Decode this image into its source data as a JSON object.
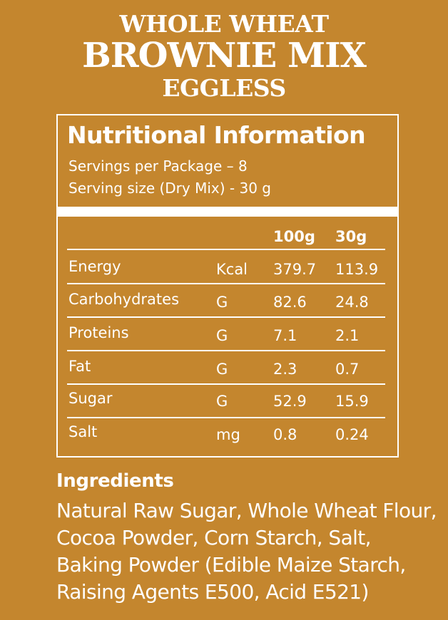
{
  "header": {
    "line1": "WHOLE WHEAT",
    "line2": "BROWNIE MIX",
    "line3": "EGGLESS"
  },
  "nutrition": {
    "title": "Nutritional Information",
    "servings_per_package": "Servings per Package – 8",
    "serving_size": "Serving size (Dry Mix) - 30 g",
    "columns": [
      "100g",
      "30g"
    ],
    "rows": [
      {
        "name": "Energy",
        "unit": "Kcal",
        "per100g": "379.7",
        "per30g": "113.9"
      },
      {
        "name": "Carbohydrates",
        "unit": "G",
        "per100g": "82.6",
        "per30g": "24.8"
      },
      {
        "name": "Proteins",
        "unit": "G",
        "per100g": "7.1",
        "per30g": "2.1"
      },
      {
        "name": "Fat",
        "unit": "G",
        "per100g": "2.3",
        "per30g": "0.7"
      },
      {
        "name": "Sugar",
        "unit": "G",
        "per100g": "52.9",
        "per30g": "15.9"
      },
      {
        "name": "Salt",
        "unit": "mg",
        "per100g": "0.8",
        "per30g": "0.24"
      }
    ]
  },
  "ingredients": {
    "heading": "Ingredients",
    "lines": [
      "Natural Raw Sugar, Whole Wheat Flour,",
      "Cocoa Powder, Corn Starch, Salt,",
      "Baking Powder (Edible Maize Starch,",
      "Raising Agents E500, Acid E521)"
    ]
  },
  "colors": {
    "background": "#c4862e",
    "text": "#ffffff"
  }
}
